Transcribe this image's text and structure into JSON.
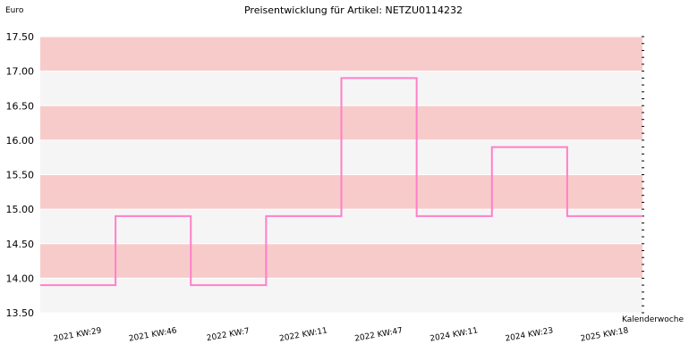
{
  "chart_data": {
    "type": "line",
    "step": true,
    "title": "Preisentwicklung für Artikel: NETZU0114232",
    "ylabel": "Euro",
    "xlabel": "Kalenderwoche",
    "ylim": [
      13.5,
      17.5
    ],
    "y_ticks": [
      "13.50",
      "14.00",
      "14.50",
      "15.00",
      "15.50",
      "16.00",
      "16.50",
      "17.00",
      "17.50"
    ],
    "categories": [
      "2021 KW:29",
      "2021 KW:46",
      "2022 KW:7",
      "2022 KW:11",
      "2022 KW:47",
      "2024 KW:11",
      "2024 KW:23",
      "2025 KW:18"
    ],
    "series": [
      {
        "values": [
          13.9,
          14.9,
          13.9,
          14.9,
          16.9,
          14.9,
          15.9,
          14.9
        ]
      }
    ],
    "band_colors": [
      "#f8cbcb",
      "#f5f5f5"
    ],
    "line_color": "#ff7fc8",
    "grid": true,
    "legend": "none"
  }
}
